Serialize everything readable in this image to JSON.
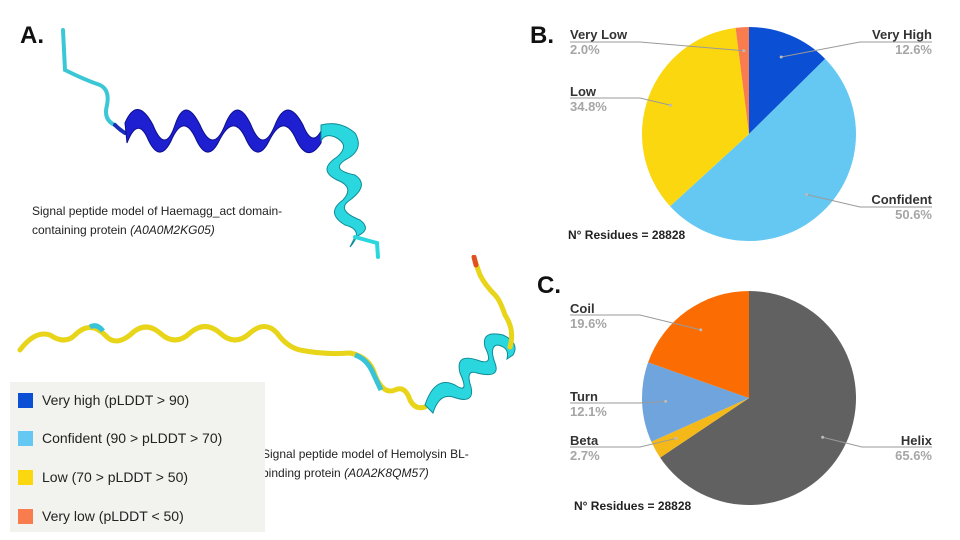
{
  "panels": {
    "a": "A.",
    "b": "B.",
    "c": "C."
  },
  "structures": {
    "top_caption_line1": "Signal peptide model of Haemagg_act domain-",
    "top_caption_line2": "containing protein",
    "top_caption_id": "(A0A0M2KG05)",
    "bottom_caption_line1": "Signal peptide model of Hemolysin BL-",
    "bottom_caption_line2": "binding protein",
    "bottom_caption_id": "(A0A2K8QM57)"
  },
  "legend": {
    "items": [
      {
        "label": "Very high (pLDDT > 90)",
        "color": "#0b4fd4"
      },
      {
        "label": "Confident (90 > pLDDT > 70)",
        "color": "#65c8f2"
      },
      {
        "label": "Low (70 > pLDDT > 50)",
        "color": "#fbd70f"
      },
      {
        "label": "Very low (pLDDT < 50)",
        "color": "#f97c4e"
      }
    ]
  },
  "chart_data": [
    {
      "type": "pie",
      "panel": "B.",
      "note": "N° Residues = 28828",
      "slices": [
        {
          "label": "Very High",
          "value": 12.6,
          "value_text": "12.6%",
          "color": "#0b4fd4"
        },
        {
          "label": "Confident",
          "value": 50.6,
          "value_text": "50.6%",
          "color": "#65c8f2"
        },
        {
          "label": "Low",
          "value": 34.8,
          "value_text": "34.8%",
          "color": "#fbd70f"
        },
        {
          "label": "Very Low",
          "value": 2.0,
          "value_text": "2.0%",
          "color": "#f97c4e"
        }
      ]
    },
    {
      "type": "pie",
      "panel": "C.",
      "note": "N° Residues = 28828",
      "slices": [
        {
          "label": "Helix",
          "value": 65.6,
          "value_text": "65.6%",
          "color": "#616161"
        },
        {
          "label": "Beta",
          "value": 2.7,
          "value_text": "2.7%",
          "color": "#f4b918"
        },
        {
          "label": "Turn",
          "value": 12.1,
          "value_text": "12.1%",
          "color": "#6fa4dc"
        },
        {
          "label": "Coil",
          "value": 19.6,
          "value_text": "19.6%",
          "color": "#fb6d02"
        }
      ]
    }
  ]
}
